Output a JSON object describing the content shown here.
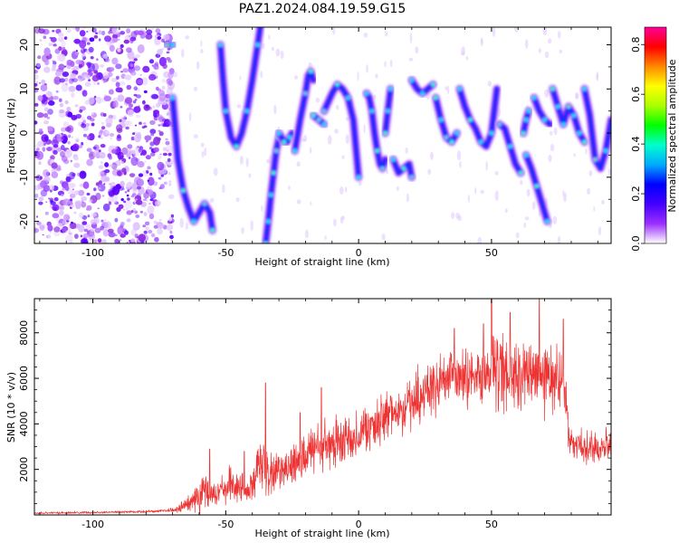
{
  "title": "PAZ1.2024.084.19.59.G15",
  "chart_data": [
    {
      "type": "heatmap",
      "xlabel": "Height of straight line (km)",
      "ylabel": "Frequency (Hz)",
      "xlim": [
        -122,
        95
      ],
      "ylim": [
        -25,
        24
      ],
      "xticks": [
        -100,
        -50,
        0,
        50
      ],
      "yticks": [
        -20,
        -10,
        0,
        10,
        20
      ],
      "xtick_labels": [
        "-100",
        "-50",
        "0",
        "50"
      ],
      "ytick_labels": [
        "-20",
        "-10",
        "0",
        "10",
        "20"
      ],
      "noise_region_x": [
        -122,
        -70
      ],
      "tracks": [
        {
          "x": [
            -72,
            -70
          ],
          "y": [
            20,
            20
          ]
        },
        {
          "x": [
            -70,
            -68,
            -66,
            -64,
            -62,
            -60,
            -58,
            -56,
            -55
          ],
          "y": [
            8,
            -6,
            -13,
            -17,
            -20,
            -18,
            -16,
            -18,
            -22
          ]
        },
        {
          "x": [
            -52,
            -51,
            -50,
            -48,
            -46,
            -44,
            -42,
            -40,
            -38,
            -37
          ],
          "y": [
            20,
            12,
            5,
            -1,
            -3,
            0,
            5,
            12,
            20,
            24
          ]
        },
        {
          "x": [
            -35,
            -34,
            -33,
            -32,
            -31,
            -30
          ],
          "y": [
            -25,
            -20,
            -14,
            -9,
            -4,
            -1
          ]
        },
        {
          "x": [
            -30,
            -29,
            -28,
            -27,
            -26,
            -25
          ],
          "y": [
            0,
            -1,
            -2,
            -2,
            -1,
            0
          ]
        },
        {
          "x": [
            -24,
            -22,
            -20,
            -19,
            -18,
            -17
          ],
          "y": [
            -4,
            3,
            9,
            13,
            14,
            12
          ]
        },
        {
          "x": [
            -17,
            -15,
            -13
          ],
          "y": [
            4,
            3,
            2
          ]
        },
        {
          "x": [
            -13,
            -10,
            -8,
            -6,
            -4,
            -2,
            0
          ],
          "y": [
            5,
            9,
            11,
            10,
            8,
            3,
            -10
          ]
        },
        {
          "x": [
            3,
            4,
            5,
            6,
            7,
            8,
            9,
            10
          ],
          "y": [
            9,
            8,
            5,
            0,
            -4,
            -7,
            -8,
            -6
          ]
        },
        {
          "x": [
            10,
            11,
            12
          ],
          "y": [
            0,
            5,
            10
          ]
        },
        {
          "x": [
            13,
            15,
            17,
            19,
            20
          ],
          "y": [
            -6,
            -9,
            -8,
            -7,
            -10
          ]
        },
        {
          "x": [
            20,
            22,
            24,
            26,
            28
          ],
          "y": [
            12,
            10,
            9,
            10,
            11
          ]
        },
        {
          "x": [
            29,
            31,
            33,
            35,
            37
          ],
          "y": [
            8,
            3,
            -1,
            -2,
            0
          ]
        },
        {
          "x": [
            38,
            40,
            42,
            44,
            46,
            48,
            50,
            52
          ],
          "y": [
            10,
            6,
            3,
            1,
            -2,
            -3,
            0,
            10
          ]
        },
        {
          "x": [
            53,
            55,
            57,
            59,
            61
          ],
          "y": [
            2,
            1,
            -3,
            -7,
            -9
          ]
        },
        {
          "x": [
            62,
            63,
            64
          ],
          "y": [
            0,
            3,
            5
          ]
        },
        {
          "x": [
            63,
            65,
            67,
            69,
            71
          ],
          "y": [
            -5,
            -8,
            -12,
            -16,
            -20
          ]
        },
        {
          "x": [
            66,
            68,
            70,
            72
          ],
          "y": [
            8,
            5,
            3,
            2
          ]
        },
        {
          "x": [
            73,
            75,
            77,
            79,
            81,
            83,
            85
          ],
          "y": [
            10,
            6,
            2,
            6,
            4,
            0,
            -2
          ]
        },
        {
          "x": [
            85,
            87,
            89,
            91,
            93,
            95
          ],
          "y": [
            10,
            4,
            -6,
            -8,
            -4,
            3
          ]
        }
      ]
    },
    {
      "type": "line",
      "xlabel": "Height of straight line (km)",
      "ylabel": "SNR (10 * v/v)",
      "xlim": [
        -122,
        95
      ],
      "ylim": [
        0,
        9500
      ],
      "xticks": [
        -100,
        -50,
        0,
        50
      ],
      "yticks": [
        2000,
        4000,
        6000,
        8000
      ],
      "xtick_labels": [
        "-100",
        "-50",
        "0",
        "50"
      ],
      "ytick_labels": [
        "2000",
        "4000",
        "6000",
        "8000"
      ],
      "color": "#ee3333",
      "envelope": {
        "x": [
          -122,
          -100,
          -80,
          -72,
          -68,
          -64,
          -62,
          -60,
          -58,
          -56,
          -52,
          -48,
          -44,
          -40,
          -38,
          -36,
          -34,
          -30,
          -25,
          -20,
          -15,
          -10,
          -5,
          0,
          5,
          10,
          15,
          20,
          25,
          30,
          35,
          40,
          45,
          50,
          55,
          60,
          65,
          70,
          75,
          78,
          79,
          82,
          86,
          90,
          95
        ],
        "mean": [
          80,
          110,
          150,
          180,
          250,
          500,
          700,
          900,
          1100,
          800,
          1000,
          1300,
          1200,
          1100,
          2000,
          2200,
          1500,
          2000,
          2300,
          2600,
          2900,
          3000,
          3300,
          3600,
          3900,
          4200,
          4600,
          5000,
          5400,
          5700,
          5900,
          6100,
          6100,
          6200,
          6200,
          6100,
          6100,
          6000,
          5900,
          5700,
          3200,
          3100,
          3000,
          3000,
          3200
        ],
        "spread": [
          60,
          60,
          70,
          80,
          200,
          500,
          800,
          1000,
          1200,
          800,
          800,
          1000,
          900,
          900,
          1500,
          2000,
          1200,
          1200,
          1300,
          1400,
          1500,
          1500,
          1400,
          1300,
          1300,
          1400,
          1400,
          1500,
          1500,
          1600,
          1700,
          1800,
          1900,
          2000,
          2000,
          2000,
          2000,
          2000,
          1900,
          1800,
          800,
          800,
          900,
          900,
          900
        ]
      },
      "spikes": [
        {
          "x": -56,
          "y": 2900
        },
        {
          "x": -43,
          "y": 2800
        },
        {
          "x": -35,
          "y": 5800
        },
        {
          "x": -22,
          "y": 4500
        },
        {
          "x": -14,
          "y": 5600
        },
        {
          "x": 36,
          "y": 8200
        },
        {
          "x": 47,
          "y": 8400
        },
        {
          "x": 50,
          "y": 9500
        },
        {
          "x": 57,
          "y": 8900
        },
        {
          "x": 68,
          "y": 9500
        },
        {
          "x": 77,
          "y": 8600
        }
      ]
    }
  ],
  "colorbar": {
    "label": "Normalized spectral amplitude",
    "range": [
      0,
      0.87
    ],
    "ticks": [
      0.0,
      0.2,
      0.4,
      0.6,
      0.8
    ],
    "tick_labels": [
      "0.0",
      "0.2",
      "0.4",
      "0.6",
      "0.8"
    ],
    "colors": [
      "#ffffff",
      "#9b30ff",
      "#4400ff",
      "#0000ff",
      "#00aaff",
      "#00ffcc",
      "#00ff00",
      "#aaff00",
      "#ffff00",
      "#ff8800",
      "#ff0000",
      "#ff0099"
    ]
  },
  "colors": {
    "accent": "#ee3333",
    "axes": "#000000"
  }
}
